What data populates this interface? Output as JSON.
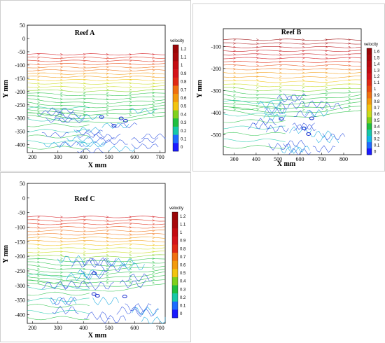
{
  "chart_data": [
    {
      "type": "streamline",
      "title": "Reef A",
      "xlabel": "X mm",
      "ylabel": "Y mm",
      "xlim": [
        180,
        720
      ],
      "ylim": [
        -430,
        50
      ],
      "xticks": [
        200,
        300,
        400,
        500,
        600,
        700
      ],
      "yticks": [
        50,
        0,
        -50,
        -100,
        -150,
        -200,
        -250,
        -300,
        -350,
        -400
      ],
      "legend": {
        "title": "velocity",
        "levels": [
          1.2,
          1.1,
          1,
          0.9,
          0.8,
          0.7,
          0.6,
          0.5,
          0.4,
          0.3,
          0.2,
          0.1,
          0
        ]
      },
      "flow_region": [
        -430,
        -60
      ],
      "reef_region": {
        "x": [
          260,
          680
        ],
        "y": [
          -430,
          -260
        ]
      }
    },
    {
      "type": "streamline",
      "title": "Reef B",
      "xlabel": "X mm",
      "ylabel": "Y mm",
      "xlim": [
        250,
        880
      ],
      "ylim": [
        -590,
        -20
      ],
      "xticks": [
        300,
        400,
        500,
        600,
        700,
        800
      ],
      "yticks": [
        -100,
        -200,
        -300,
        -400,
        -500
      ],
      "legend": {
        "title": "velocity",
        "levels": [
          1.6,
          1.5,
          1.4,
          1.3,
          1.2,
          1.1,
          1,
          0.9,
          0.8,
          0.7,
          0.6,
          0.5,
          0.4,
          0.3,
          0.2,
          0.1,
          0
        ]
      },
      "flow_region": [
        -580,
        -70
      ],
      "reef_region": {
        "x": [
          410,
          820
        ],
        "y": [
          -580,
          -320
        ]
      }
    },
    {
      "type": "streamline",
      "title": "Reef C",
      "xlabel": "X mm",
      "ylabel": "Y mm",
      "xlim": [
        180,
        720
      ],
      "ylim": [
        -430,
        50
      ],
      "xticks": [
        200,
        300,
        400,
        500,
        600,
        700
      ],
      "yticks": [
        50,
        0,
        -50,
        -100,
        -150,
        -200,
        -250,
        -300,
        -350,
        -400
      ],
      "legend": {
        "title": "velocity",
        "levels": [
          1.2,
          1.1,
          1,
          0.9,
          0.8,
          0.7,
          0.6,
          0.5,
          0.4,
          0.3,
          0.2,
          0.1,
          0
        ]
      },
      "flow_region": [
        -430,
        -65
      ],
      "reef_region": {
        "x": [
          280,
          690
        ],
        "y": [
          -430,
          -200
        ]
      }
    }
  ]
}
